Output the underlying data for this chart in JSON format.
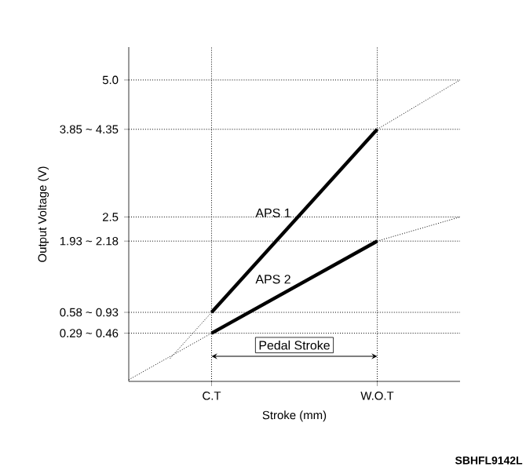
{
  "chart_data": {
    "type": "line",
    "xlabel": "Stroke (mm)",
    "ylabel": "Output Voltage (V)",
    "categories": [
      null,
      null,
      "C.T",
      null,
      null,
      null,
      "W.O.T",
      null,
      null
    ],
    "ylim": [
      -0.5,
      5.6
    ],
    "yticks": [
      {
        "value": 0.38,
        "label": "0.29 ~ 0.46"
      },
      {
        "value": 0.76,
        "label": "0.58 ~ 0.93"
      },
      {
        "value": 2.06,
        "label": "1.93 ~ 2.18"
      },
      {
        "value": 2.5,
        "label": "2.5"
      },
      {
        "value": 4.1,
        "label": "3.85 ~ 4.35"
      },
      {
        "value": 5.0,
        "label": "5.0"
      }
    ],
    "series": [
      {
        "name": "APS 1",
        "color": "#000000",
        "line_style": "solid",
        "values": [
          null,
          null,
          0.76,
          null,
          null,
          null,
          4.1,
          null,
          null
        ]
      },
      {
        "name": "APS 2",
        "color": "#000000",
        "line_style": "solid",
        "values": [
          null,
          null,
          0.38,
          null,
          null,
          null,
          2.06,
          null,
          null
        ]
      },
      {
        "color": "#000000",
        "line_style": "dotted",
        "values": [
          null,
          -0.08,
          0.76,
          null,
          null,
          null,
          null,
          null,
          null
        ]
      },
      {
        "color": "#000000",
        "line_style": "dotted",
        "values": [
          null,
          null,
          null,
          null,
          null,
          null,
          4.1,
          null,
          5.0
        ]
      },
      {
        "color": "#000000",
        "line_style": "dotted",
        "values": [
          -0.47,
          null,
          0.38,
          null,
          null,
          null,
          null,
          null,
          null
        ]
      },
      {
        "color": "#000000",
        "line_style": "dotted",
        "values": [
          null,
          null,
          null,
          null,
          null,
          null,
          2.06,
          null,
          2.5
        ]
      }
    ],
    "ref_lines": [
      {
        "axis": "y",
        "value": 5.0,
        "line_style": "dotted"
      },
      {
        "axis": "y",
        "value": 4.1,
        "line_style": "dotted"
      },
      {
        "axis": "y",
        "value": 2.5,
        "line_style": "dotted"
      },
      {
        "axis": "y",
        "value": 2.06,
        "line_style": "dotted"
      },
      {
        "axis": "y",
        "value": 0.76,
        "line_style": "dotted"
      },
      {
        "axis": "y",
        "value": 0.38,
        "line_style": "dotted"
      },
      {
        "axis": "x",
        "value": "C.T",
        "line_style": "dotted"
      },
      {
        "axis": "x",
        "value": "W.O.T",
        "line_style": "dotted"
      }
    ],
    "annotations": [
      "Pedal Stroke",
      "SBHFL9142L"
    ]
  }
}
